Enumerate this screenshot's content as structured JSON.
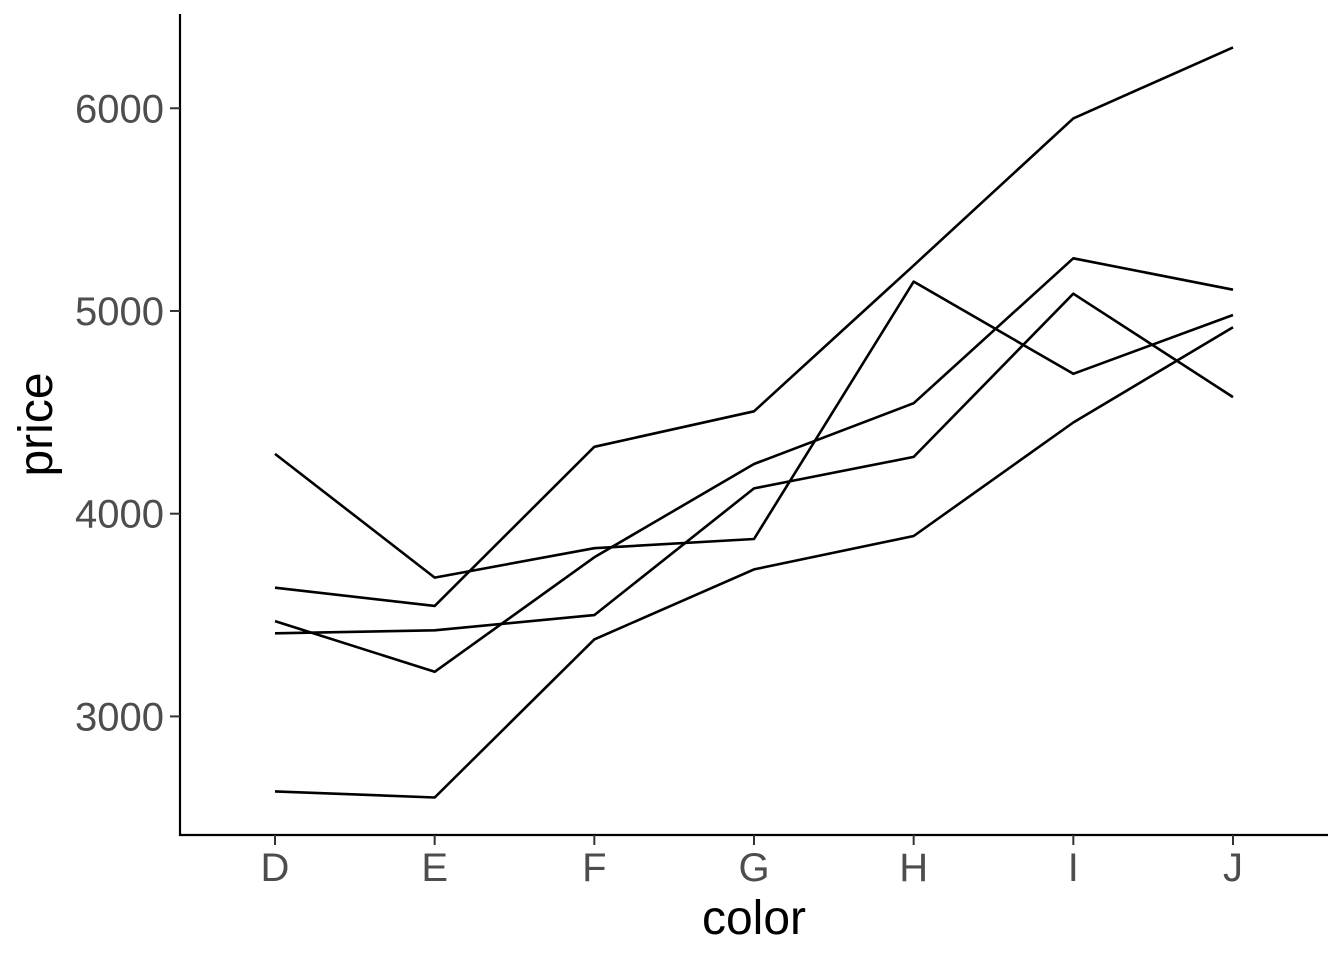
{
  "chart_data": {
    "type": "line",
    "title": "",
    "xlabel": "color",
    "ylabel": "price",
    "categories": [
      "D",
      "E",
      "F",
      "G",
      "H",
      "I",
      "J"
    ],
    "ylim": [
      2415,
      6465
    ],
    "yticks": [
      3000,
      4000,
      5000,
      6000
    ],
    "ytick_labels": [
      "3000",
      "4000",
      "5000",
      "6000"
    ],
    "grid": false,
    "legend": "none",
    "series": [
      {
        "values": [
          2630,
          2600,
          3380,
          3725,
          3890,
          4450,
          4920
        ]
      },
      {
        "values": [
          3410,
          3425,
          3500,
          4125,
          4280,
          5085,
          4575
        ]
      },
      {
        "values": [
          3635,
          3545,
          4330,
          4505,
          5225,
          5950,
          6300
        ]
      },
      {
        "values": [
          4295,
          3685,
          3830,
          3875,
          5145,
          4690,
          4980
        ]
      },
      {
        "values": [
          3470,
          3220,
          3785,
          4245,
          4545,
          5260,
          5105
        ]
      }
    ],
    "line_color": "#000000"
  }
}
